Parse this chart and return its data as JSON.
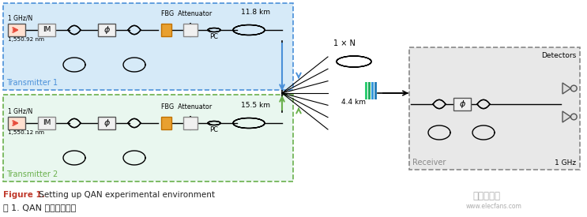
{
  "fig_width": 7.43,
  "fig_height": 2.75,
  "dpi": 100,
  "bg_color": "#ffffff",
  "transmitter1": {
    "label": "Transmitter 1",
    "box_color": "#d6eaf8",
    "box_edge": "#4a90d9",
    "freq": "1 GHz/N",
    "wavelength": "1,550.92 nm",
    "fbg_label": "FBG  Attenuator",
    "pc_label": "PC",
    "fiber_label": "11.8 km"
  },
  "transmitter2": {
    "label": "Transmitter 2",
    "box_color": "#e9f7ef",
    "box_edge": "#6ab04c",
    "freq": "1 GHz/N",
    "wavelength": "1,550.12 nm",
    "fbg_label": "FBG  Attenuator",
    "pc_label": "PC",
    "fiber_label": "15.5 km"
  },
  "splitter_label": "1 × N",
  "center_fiber_label": "4.4 km",
  "receiver": {
    "label": "Receiver",
    "freq_label": "1 GHz",
    "det_label": "Detectors",
    "box_color": "#e8e8e8",
    "box_edge": "#888888"
  },
  "figure_caption_en": "Figure 1.",
  "figure_caption_en2": " Setting up QAN experimental environment",
  "figure_caption_zh": "图 1. QAN 实验环境搞建",
  "caption_color_red": "#c0392b",
  "caption_color_black": "#222222",
  "logo_text": "电子发烧友",
  "logo_url": "www.elecfans.com",
  "wdm_colors": [
    "#2ecc71",
    "#27ae60",
    "#3498db",
    "#2980b9"
  ]
}
